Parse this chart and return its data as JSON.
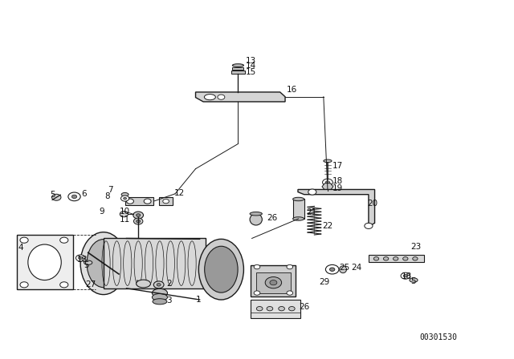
{
  "title": "",
  "background_color": "#ffffff",
  "part_number_code": "00301530",
  "figure_size": [
    6.4,
    4.48
  ],
  "dpi": 100
}
